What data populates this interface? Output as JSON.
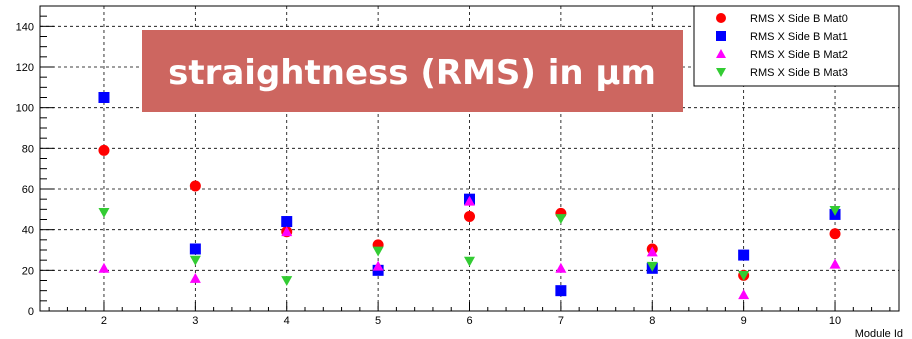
{
  "chart_data": {
    "type": "scatter",
    "title": "",
    "xlabel": "Module Id",
    "ylabel": "",
    "xlim": [
      1.3,
      10.7
    ],
    "ylim": [
      0,
      150
    ],
    "grid": true,
    "x_ticks": [
      2,
      3,
      4,
      5,
      6,
      7,
      8,
      9,
      10
    ],
    "y_ticks": [
      0,
      20,
      40,
      60,
      80,
      100,
      120,
      140
    ],
    "legend_position": "top-right",
    "overlay_label": "straightness (RMS) in μm",
    "overlay_color": "#cd6660",
    "series": [
      {
        "name": "RMS X Side B Mat0",
        "marker": "circle",
        "color": "#ff0000",
        "x": [
          2,
          3,
          4,
          5,
          6,
          7,
          8,
          9,
          10
        ],
        "y": [
          79,
          61.5,
          39,
          32.5,
          46.5,
          48,
          30.5,
          17.5,
          38
        ]
      },
      {
        "name": "RMS X Side B Mat1",
        "marker": "square",
        "color": "#0000ff",
        "x": [
          2,
          3,
          4,
          5,
          6,
          7,
          8,
          9,
          10
        ],
        "y": [
          105,
          30.5,
          44,
          20,
          55,
          10,
          21,
          27.5,
          47.5
        ]
      },
      {
        "name": "RMS X Side B Mat2",
        "marker": "triangle-up",
        "color": "#ff00ff",
        "x": [
          2,
          3,
          4,
          5,
          6,
          7,
          8,
          9,
          10
        ],
        "y": [
          21,
          16,
          39,
          22,
          54,
          21,
          29,
          8,
          23
        ]
      },
      {
        "name": "RMS X Side B Mat3",
        "marker": "triangle-down",
        "color": "#33cc33",
        "x": [
          2,
          3,
          4,
          5,
          6,
          7,
          8,
          9,
          10
        ],
        "y": [
          48.5,
          25,
          15,
          29.5,
          24.5,
          45.5,
          22,
          17.5,
          49.5
        ]
      }
    ]
  }
}
